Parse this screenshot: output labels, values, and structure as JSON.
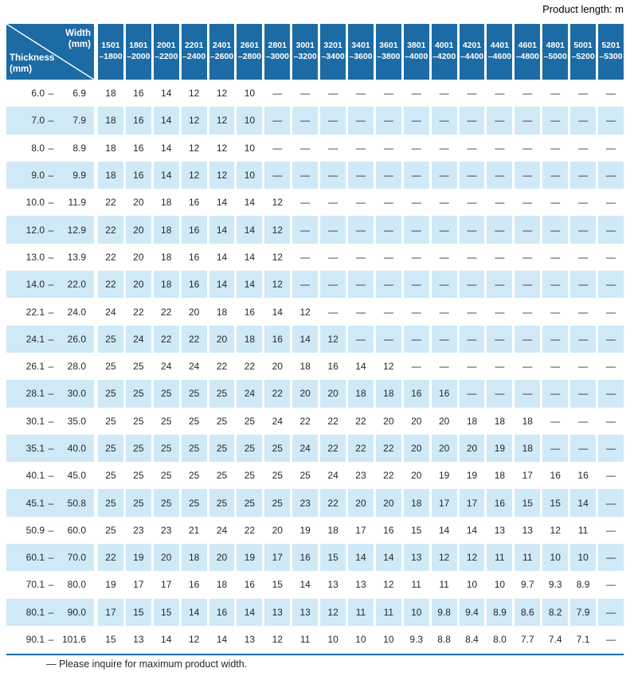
{
  "page": {
    "top_note": "Product length: m",
    "footnote": "— Please inquire for maximum product width."
  },
  "colors": {
    "header_blue": "#1c6ba4",
    "stripe_blue": "#cfe9f7",
    "text_dark": "#282828"
  },
  "table": {
    "corner": {
      "width_label": "Width",
      "width_unit": "(mm)",
      "thickness_label": "Thickness",
      "thickness_unit": "(mm)"
    },
    "range_separator": "–",
    "width_columns": [
      {
        "hi": "1501",
        "lo": "–1800"
      },
      {
        "hi": "1801",
        "lo": "–2000"
      },
      {
        "hi": "2001",
        "lo": "–2200"
      },
      {
        "hi": "2201",
        "lo": "–2400"
      },
      {
        "hi": "2401",
        "lo": "–2600"
      },
      {
        "hi": "2601",
        "lo": "–2800"
      },
      {
        "hi": "2801",
        "lo": "–3000"
      },
      {
        "hi": "3001",
        "lo": "–3200"
      },
      {
        "hi": "3201",
        "lo": "–3400"
      },
      {
        "hi": "3401",
        "lo": "–3600"
      },
      {
        "hi": "3601",
        "lo": "–3800"
      },
      {
        "hi": "3801",
        "lo": "–4000"
      },
      {
        "hi": "4001",
        "lo": "–4200"
      },
      {
        "hi": "4201",
        "lo": "–4400"
      },
      {
        "hi": "4401",
        "lo": "–4600"
      },
      {
        "hi": "4601",
        "lo": "–4800"
      },
      {
        "hi": "4801",
        "lo": "–5000"
      },
      {
        "hi": "5001",
        "lo": "–5200"
      },
      {
        "hi": "5201",
        "lo": "–5300"
      }
    ],
    "rows": [
      {
        "from": "6.0",
        "to": "6.9",
        "values": [
          "18",
          "16",
          "14",
          "12",
          "12",
          "10",
          "—",
          "—",
          "—",
          "—",
          "—",
          "—",
          "—",
          "—",
          "—",
          "—",
          "—",
          "—",
          "—"
        ]
      },
      {
        "from": "7.0",
        "to": "7.9",
        "values": [
          "18",
          "16",
          "14",
          "12",
          "12",
          "10",
          "—",
          "—",
          "—",
          "—",
          "—",
          "—",
          "—",
          "—",
          "—",
          "—",
          "—",
          "—",
          "—"
        ]
      },
      {
        "from": "8.0",
        "to": "8.9",
        "values": [
          "18",
          "16",
          "14",
          "12",
          "12",
          "10",
          "—",
          "—",
          "—",
          "—",
          "—",
          "—",
          "—",
          "—",
          "—",
          "—",
          "—",
          "—",
          "—"
        ]
      },
      {
        "from": "9.0",
        "to": "9.9",
        "values": [
          "18",
          "16",
          "14",
          "12",
          "12",
          "10",
          "—",
          "—",
          "—",
          "—",
          "—",
          "—",
          "—",
          "—",
          "—",
          "—",
          "—",
          "—",
          "—"
        ]
      },
      {
        "from": "10.0",
        "to": "11.9",
        "values": [
          "22",
          "20",
          "18",
          "16",
          "14",
          "14",
          "12",
          "—",
          "—",
          "—",
          "—",
          "—",
          "—",
          "—",
          "—",
          "—",
          "—",
          "—",
          "—"
        ]
      },
      {
        "from": "12.0",
        "to": "12.9",
        "values": [
          "22",
          "20",
          "18",
          "16",
          "14",
          "14",
          "12",
          "—",
          "—",
          "—",
          "—",
          "—",
          "—",
          "—",
          "—",
          "—",
          "—",
          "—",
          "—"
        ]
      },
      {
        "from": "13.0",
        "to": "13.9",
        "values": [
          "22",
          "20",
          "18",
          "16",
          "14",
          "14",
          "12",
          "—",
          "—",
          "—",
          "—",
          "—",
          "—",
          "—",
          "—",
          "—",
          "—",
          "—",
          "—"
        ]
      },
      {
        "from": "14.0",
        "to": "22.0",
        "values": [
          "22",
          "20",
          "18",
          "16",
          "14",
          "14",
          "12",
          "—",
          "—",
          "—",
          "—",
          "—",
          "—",
          "—",
          "—",
          "—",
          "—",
          "—",
          "—"
        ]
      },
      {
        "from": "22.1",
        "to": "24.0",
        "values": [
          "24",
          "22",
          "22",
          "20",
          "18",
          "16",
          "14",
          "12",
          "—",
          "—",
          "—",
          "—",
          "—",
          "—",
          "—",
          "—",
          "—",
          "—",
          "—"
        ]
      },
      {
        "from": "24.1",
        "to": "26.0",
        "values": [
          "25",
          "24",
          "22",
          "22",
          "20",
          "18",
          "16",
          "14",
          "12",
          "—",
          "—",
          "—",
          "—",
          "—",
          "—",
          "—",
          "—",
          "—",
          "—"
        ]
      },
      {
        "from": "26.1",
        "to": "28.0",
        "values": [
          "25",
          "25",
          "24",
          "24",
          "22",
          "22",
          "20",
          "18",
          "16",
          "14",
          "12",
          "—",
          "—",
          "—",
          "—",
          "—",
          "—",
          "—",
          "—"
        ]
      },
      {
        "from": "28.1",
        "to": "30.0",
        "values": [
          "25",
          "25",
          "25",
          "25",
          "25",
          "24",
          "22",
          "20",
          "20",
          "18",
          "18",
          "16",
          "16",
          "—",
          "—",
          "—",
          "—",
          "—",
          "—"
        ]
      },
      {
        "from": "30.1",
        "to": "35.0",
        "values": [
          "25",
          "25",
          "25",
          "25",
          "25",
          "25",
          "24",
          "22",
          "22",
          "22",
          "20",
          "20",
          "20",
          "18",
          "18",
          "18",
          "—",
          "—",
          "—"
        ]
      },
      {
        "from": "35.1",
        "to": "40.0",
        "values": [
          "25",
          "25",
          "25",
          "25",
          "25",
          "25",
          "25",
          "24",
          "22",
          "22",
          "22",
          "20",
          "20",
          "20",
          "19",
          "18",
          "—",
          "—",
          "—"
        ]
      },
      {
        "from": "40.1",
        "to": "45.0",
        "values": [
          "25",
          "25",
          "25",
          "25",
          "25",
          "25",
          "25",
          "25",
          "24",
          "23",
          "22",
          "20",
          "19",
          "19",
          "18",
          "17",
          "16",
          "16",
          "—"
        ]
      },
      {
        "from": "45.1",
        "to": "50.8",
        "values": [
          "25",
          "25",
          "25",
          "25",
          "25",
          "25",
          "25",
          "23",
          "22",
          "20",
          "20",
          "18",
          "17",
          "17",
          "16",
          "15",
          "15",
          "14",
          "—"
        ]
      },
      {
        "from": "50.9",
        "to": "60.0",
        "values": [
          "25",
          "23",
          "23",
          "21",
          "24",
          "22",
          "20",
          "19",
          "18",
          "17",
          "16",
          "15",
          "14",
          "14",
          "13",
          "13",
          "12",
          "11",
          "—"
        ]
      },
      {
        "from": "60.1",
        "to": "70.0",
        "values": [
          "22",
          "19",
          "20",
          "18",
          "20",
          "19",
          "17",
          "16",
          "15",
          "14",
          "14",
          "13",
          "12",
          "12",
          "11",
          "11",
          "10",
          "10",
          "—"
        ]
      },
      {
        "from": "70.1",
        "to": "80.0",
        "values": [
          "19",
          "17",
          "17",
          "16",
          "18",
          "16",
          "15",
          "14",
          "13",
          "13",
          "12",
          "11",
          "11",
          "10",
          "10",
          "9.7",
          "9.3",
          "8.9",
          "—"
        ]
      },
      {
        "from": "80.1",
        "to": "90.0",
        "values": [
          "17",
          "15",
          "15",
          "14",
          "16",
          "14",
          "13",
          "13",
          "12",
          "11",
          "11",
          "10",
          "9.8",
          "9.4",
          "8.9",
          "8.6",
          "8.2",
          "7.9",
          "—"
        ]
      },
      {
        "from": "90.1",
        "to": "101.6",
        "values": [
          "15",
          "13",
          "14",
          "12",
          "14",
          "13",
          "12",
          "11",
          "10",
          "10",
          "10",
          "9.3",
          "8.8",
          "8.4",
          "8.0",
          "7.7",
          "7.4",
          "7.1",
          "—"
        ]
      }
    ]
  }
}
